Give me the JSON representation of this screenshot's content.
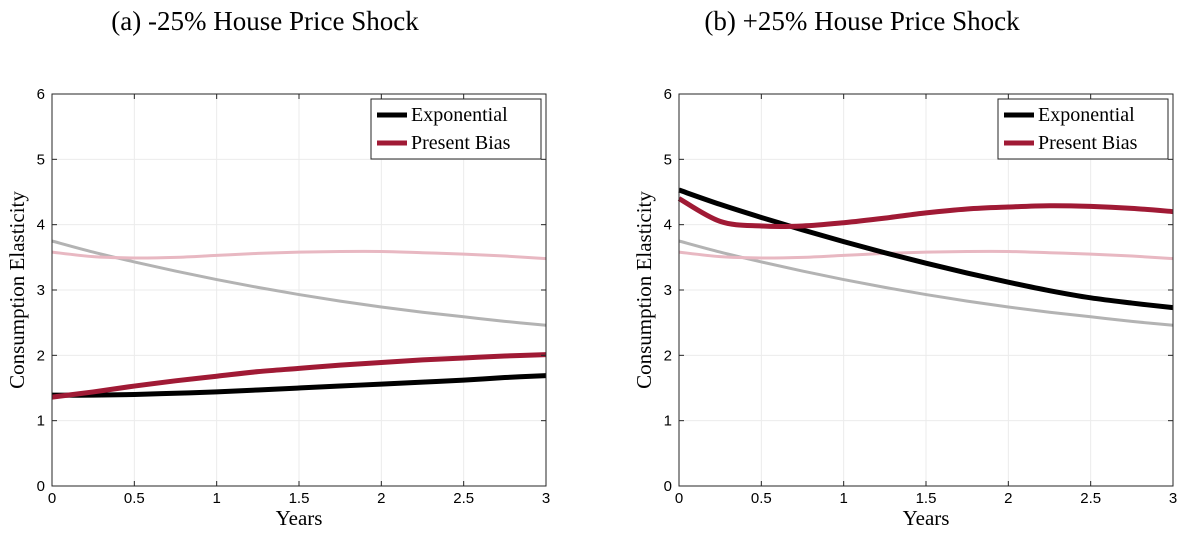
{
  "chart_data": [
    {
      "type": "line",
      "title": "(a) -25% House Price Shock",
      "xlabel": "Years",
      "ylabel": "Consumption Elasticity",
      "xlim": [
        0,
        3
      ],
      "ylim": [
        0,
        6
      ],
      "xticks": [
        "0",
        "0.5",
        "1",
        "1.5",
        "2",
        "2.5",
        "3"
      ],
      "yticks": [
        "0",
        "1",
        "2",
        "3",
        "4",
        "5",
        "6"
      ],
      "grid": true,
      "legend_position": "top-right",
      "series": [
        {
          "name": "",
          "kind": "baseline",
          "color": "#b3b3b3",
          "x": [
            0,
            0.25,
            0.5,
            0.75,
            1,
            1.25,
            1.5,
            1.75,
            2,
            2.25,
            2.5,
            2.75,
            3
          ],
          "y": [
            3.75,
            3.58,
            3.43,
            3.29,
            3.16,
            3.04,
            2.93,
            2.83,
            2.74,
            2.66,
            2.59,
            2.52,
            2.46
          ]
        },
        {
          "name": "",
          "kind": "baseline",
          "color": "#e8b8c2",
          "x": [
            0,
            0.25,
            0.5,
            0.75,
            1,
            1.25,
            1.5,
            1.75,
            2,
            2.25,
            2.5,
            2.75,
            3
          ],
          "y": [
            3.58,
            3.51,
            3.49,
            3.5,
            3.53,
            3.56,
            3.58,
            3.59,
            3.59,
            3.57,
            3.55,
            3.52,
            3.48
          ]
        },
        {
          "name": "Exponential",
          "kind": "main",
          "color": "#000000",
          "x": [
            0,
            0.25,
            0.5,
            0.75,
            1,
            1.25,
            1.5,
            1.75,
            2,
            2.25,
            2.5,
            2.75,
            3
          ],
          "y": [
            1.39,
            1.39,
            1.4,
            1.42,
            1.44,
            1.47,
            1.5,
            1.53,
            1.56,
            1.59,
            1.62,
            1.66,
            1.69
          ]
        },
        {
          "name": "Present Bias",
          "kind": "main",
          "color": "#a01a35",
          "x": [
            0,
            0.25,
            0.5,
            0.75,
            1,
            1.25,
            1.5,
            1.75,
            2,
            2.25,
            2.5,
            2.75,
            3
          ],
          "y": [
            1.36,
            1.44,
            1.53,
            1.61,
            1.68,
            1.75,
            1.8,
            1.85,
            1.89,
            1.93,
            1.96,
            1.99,
            2.01
          ]
        }
      ]
    },
    {
      "type": "line",
      "title": "(b) +25% House Price Shock",
      "xlabel": "Years",
      "ylabel": "Consumption Elasticity",
      "xlim": [
        0,
        3
      ],
      "ylim": [
        0,
        6
      ],
      "xticks": [
        "0",
        "0.5",
        "1",
        "1.5",
        "2",
        "2.5",
        "3"
      ],
      "yticks": [
        "0",
        "1",
        "2",
        "3",
        "4",
        "5",
        "6"
      ],
      "grid": true,
      "legend_position": "top-right",
      "series": [
        {
          "name": "",
          "kind": "baseline",
          "color": "#b3b3b3",
          "x": [
            0,
            0.25,
            0.5,
            0.75,
            1,
            1.25,
            1.5,
            1.75,
            2,
            2.25,
            2.5,
            2.75,
            3
          ],
          "y": [
            3.75,
            3.58,
            3.43,
            3.29,
            3.16,
            3.04,
            2.93,
            2.83,
            2.74,
            2.66,
            2.59,
            2.52,
            2.46
          ]
        },
        {
          "name": "",
          "kind": "baseline",
          "color": "#e8b8c2",
          "x": [
            0,
            0.25,
            0.5,
            0.75,
            1,
            1.25,
            1.5,
            1.75,
            2,
            2.25,
            2.5,
            2.75,
            3
          ],
          "y": [
            3.58,
            3.51,
            3.49,
            3.5,
            3.53,
            3.56,
            3.58,
            3.59,
            3.59,
            3.57,
            3.55,
            3.52,
            3.48
          ]
        },
        {
          "name": "Exponential",
          "kind": "main",
          "color": "#000000",
          "x": [
            0,
            0.25,
            0.5,
            0.75,
            1,
            1.25,
            1.5,
            1.75,
            2,
            2.25,
            2.5,
            2.75,
            3
          ],
          "y": [
            4.53,
            4.31,
            4.11,
            3.92,
            3.74,
            3.57,
            3.41,
            3.26,
            3.12,
            2.99,
            2.88,
            2.8,
            2.73
          ]
        },
        {
          "name": "Present Bias",
          "kind": "main",
          "color": "#a01a35",
          "x": [
            0,
            0.25,
            0.5,
            0.75,
            1,
            1.25,
            1.5,
            1.75,
            2,
            2.25,
            2.5,
            2.75,
            3
          ],
          "y": [
            4.4,
            4.05,
            3.98,
            3.98,
            4.03,
            4.1,
            4.18,
            4.24,
            4.27,
            4.29,
            4.28,
            4.25,
            4.2
          ]
        }
      ]
    }
  ]
}
